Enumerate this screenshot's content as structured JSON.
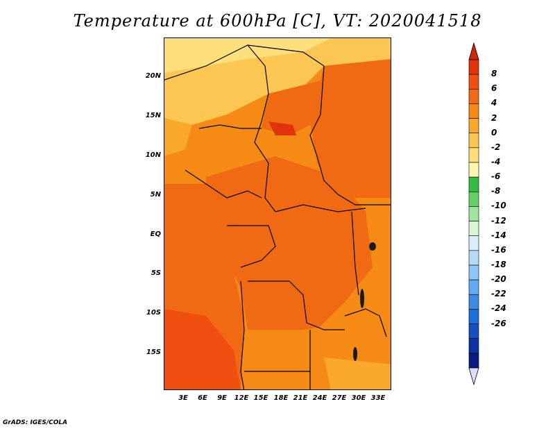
{
  "title": "Temperature at 600hPa [C], VT: 2020041518",
  "credit": "GrADS: IGES/COLA",
  "axes": {
    "y_ticks": [
      "20N",
      "15N",
      "10N",
      "5N",
      "EQ",
      "5S",
      "10S",
      "15S"
    ],
    "x_ticks": [
      "3E",
      "6E",
      "9E",
      "12E",
      "15E",
      "18E",
      "21E",
      "24E",
      "27E",
      "30E",
      "33E"
    ]
  },
  "colorbar": {
    "labels": [
      "8",
      "6",
      "4",
      "2",
      "0",
      "-2",
      "-4",
      "-6",
      "-8",
      "-10",
      "-12",
      "-14",
      "-16",
      "-18",
      "-20",
      "-22",
      "-24",
      "-26"
    ],
    "colors": [
      "#e0330a",
      "#f0500f",
      "#f06a14",
      "#f58a14",
      "#f8a82a",
      "#fbc652",
      "#fde07c",
      "#fff5b0",
      "#33bb44",
      "#66d066",
      "#a0e4a0",
      "#d8f5d8",
      "#d8eefc",
      "#b4dcf8",
      "#8cc6f4",
      "#64aaee",
      "#3c8ce4",
      "#1e6ed8",
      "#1450c0",
      "#0c32a0",
      "#0a1a80"
    ],
    "top_arrow_color": "#cc2a08",
    "bottom_arrow_color": "#dcdcfa"
  }
}
